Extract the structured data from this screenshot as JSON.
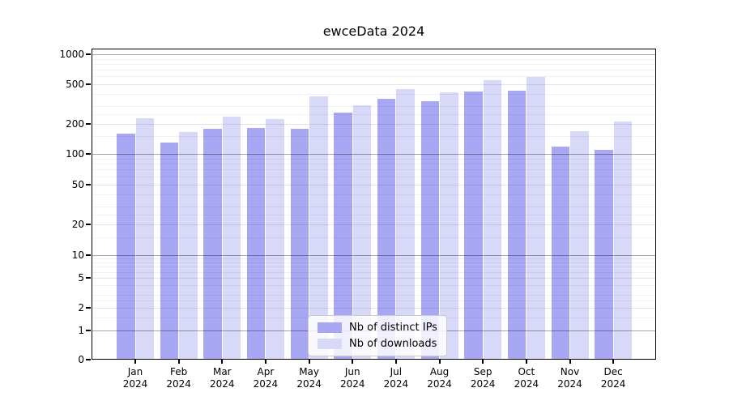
{
  "chart_data": {
    "type": "bar",
    "title": "ewceData 2024",
    "categories": [
      "Jan",
      "Feb",
      "Mar",
      "Apr",
      "May",
      "Jun",
      "Jul",
      "Aug",
      "Sep",
      "Oct",
      "Nov",
      "Dec"
    ],
    "x_year_label": "2024",
    "series": [
      {
        "name": "Nb of distinct IPs",
        "color": "#a7a7f4",
        "values": [
          160,
          130,
          180,
          182,
          178,
          258,
          355,
          337,
          420,
          428,
          118,
          110
        ]
      },
      {
        "name": "Nb of downloads",
        "color": "#d8d8f9",
        "values": [
          228,
          165,
          238,
          222,
          378,
          305,
          445,
          415,
          548,
          590,
          168,
          213
        ]
      }
    ],
    "y_ticks": [
      0,
      1,
      2,
      5,
      10,
      20,
      50,
      100,
      200,
      500,
      1000
    ],
    "y_scale": "log",
    "ylim": [
      0,
      1000
    ],
    "grid": true,
    "legend_position": "bottom-center"
  }
}
